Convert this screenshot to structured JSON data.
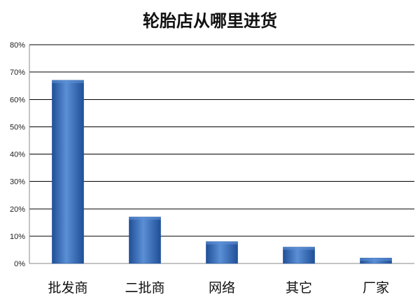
{
  "chart_data": {
    "type": "bar",
    "title": "轮胎店从哪里进货",
    "xlabel": "",
    "ylabel": "",
    "categories": [
      "批发商",
      "二批商",
      "网络",
      "其它",
      "厂家"
    ],
    "values": [
      0.67,
      0.17,
      0.08,
      0.06,
      0.02
    ],
    "ylim": [
      0,
      0.8
    ],
    "yticks": [
      0,
      0.1,
      0.2,
      0.3,
      0.4,
      0.5,
      0.6,
      0.7,
      0.8
    ],
    "ytick_labels": [
      "0%",
      "10%",
      "20%",
      "30%",
      "40%",
      "50%",
      "60%",
      "70%",
      "80%"
    ],
    "grid": true,
    "legend": "none",
    "colors": {
      "bar_light": "#5b8fd6",
      "bar_mid": "#3a70c4",
      "bar_dark": "#1f4f97",
      "grid": "#000000",
      "axis": "#888888"
    }
  }
}
